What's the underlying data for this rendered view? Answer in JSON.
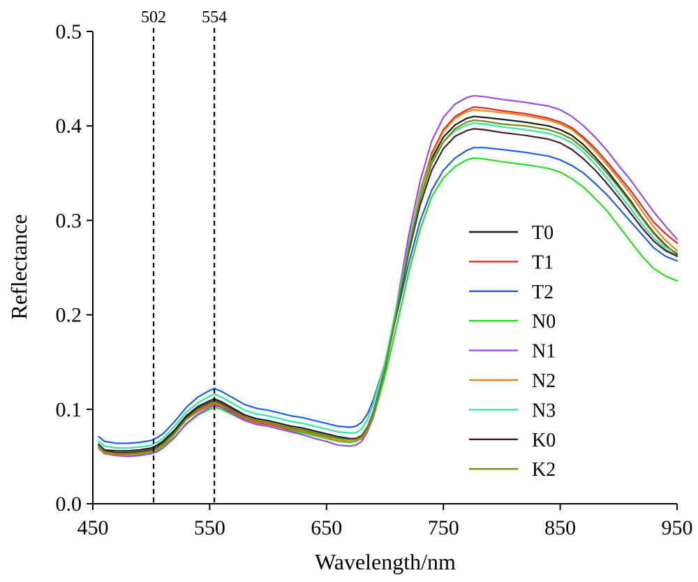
{
  "chart_data": {
    "type": "line",
    "title": "",
    "xlabel": "Wavelength/nm",
    "ylabel": "Reflectance",
    "xlim": [
      450,
      950
    ],
    "ylim": [
      0.0,
      0.5
    ],
    "xticks": [
      450,
      550,
      650,
      750,
      850,
      950
    ],
    "xtick_labels": [
      "450",
      "550",
      "650",
      "750",
      "850",
      "950"
    ],
    "yticks": [
      0.0,
      0.1,
      0.2,
      0.3,
      0.4,
      0.5
    ],
    "ytick_labels": [
      "0.0",
      "0.1",
      "0.2",
      "0.3",
      "0.4",
      "0.5"
    ],
    "grid": false,
    "legend_position": "center-right",
    "reference_lines": [
      {
        "x": 502,
        "label": "502",
        "style": "dashed"
      },
      {
        "x": 554,
        "label": "554",
        "style": "dashed"
      }
    ],
    "x": [
      455,
      460,
      470,
      480,
      490,
      500,
      505,
      510,
      520,
      530,
      540,
      550,
      554,
      560,
      570,
      580,
      590,
      600,
      610,
      620,
      630,
      640,
      650,
      660,
      670,
      675,
      680,
      685,
      690,
      700,
      710,
      720,
      730,
      740,
      750,
      760,
      770,
      776,
      785,
      800,
      820,
      840,
      850,
      860,
      870,
      880,
      890,
      900,
      910,
      920,
      930,
      940,
      950
    ],
    "series": [
      {
        "name": "T0",
        "color": "#1a1a1a",
        "values": [
          0.063,
          0.057,
          0.056,
          0.056,
          0.057,
          0.059,
          0.062,
          0.066,
          0.078,
          0.093,
          0.103,
          0.109,
          0.111,
          0.108,
          0.101,
          0.094,
          0.09,
          0.088,
          0.085,
          0.082,
          0.08,
          0.077,
          0.074,
          0.071,
          0.069,
          0.069,
          0.072,
          0.081,
          0.097,
          0.144,
          0.205,
          0.27,
          0.325,
          0.365,
          0.388,
          0.401,
          0.408,
          0.41,
          0.409,
          0.407,
          0.404,
          0.4,
          0.396,
          0.39,
          0.38,
          0.367,
          0.353,
          0.337,
          0.321,
          0.303,
          0.287,
          0.274,
          0.264
        ]
      },
      {
        "name": "T1",
        "color": "#e8201e",
        "values": [
          0.062,
          0.056,
          0.054,
          0.054,
          0.055,
          0.057,
          0.06,
          0.064,
          0.075,
          0.089,
          0.098,
          0.104,
          0.106,
          0.103,
          0.097,
          0.09,
          0.086,
          0.084,
          0.081,
          0.078,
          0.076,
          0.073,
          0.07,
          0.067,
          0.066,
          0.066,
          0.069,
          0.078,
          0.095,
          0.143,
          0.206,
          0.273,
          0.33,
          0.371,
          0.396,
          0.41,
          0.417,
          0.42,
          0.419,
          0.416,
          0.413,
          0.408,
          0.404,
          0.398,
          0.388,
          0.376,
          0.362,
          0.347,
          0.332,
          0.315,
          0.298,
          0.286,
          0.276
        ]
      },
      {
        "name": "T2",
        "color": "#1d5fe0",
        "values": [
          0.071,
          0.066,
          0.064,
          0.064,
          0.065,
          0.067,
          0.07,
          0.074,
          0.087,
          0.102,
          0.113,
          0.12,
          0.122,
          0.119,
          0.112,
          0.105,
          0.101,
          0.099,
          0.096,
          0.093,
          0.091,
          0.088,
          0.085,
          0.082,
          0.081,
          0.082,
          0.086,
          0.095,
          0.11,
          0.149,
          0.2,
          0.253,
          0.299,
          0.332,
          0.353,
          0.366,
          0.374,
          0.377,
          0.377,
          0.375,
          0.372,
          0.368,
          0.364,
          0.358,
          0.35,
          0.339,
          0.327,
          0.313,
          0.299,
          0.285,
          0.271,
          0.262,
          0.257
        ]
      },
      {
        "name": "N0",
        "color": "#22e022",
        "values": [
          0.059,
          0.053,
          0.051,
          0.051,
          0.052,
          0.054,
          0.057,
          0.061,
          0.071,
          0.084,
          0.094,
          0.1,
          0.102,
          0.1,
          0.094,
          0.088,
          0.084,
          0.082,
          0.079,
          0.077,
          0.075,
          0.072,
          0.069,
          0.066,
          0.065,
          0.066,
          0.069,
          0.077,
          0.091,
          0.135,
          0.188,
          0.243,
          0.29,
          0.325,
          0.345,
          0.357,
          0.364,
          0.366,
          0.365,
          0.362,
          0.359,
          0.355,
          0.351,
          0.344,
          0.335,
          0.323,
          0.31,
          0.294,
          0.278,
          0.262,
          0.249,
          0.241,
          0.236
        ]
      },
      {
        "name": "N1",
        "color": "#9a4be8",
        "values": [
          0.059,
          0.053,
          0.051,
          0.05,
          0.051,
          0.053,
          0.055,
          0.059,
          0.07,
          0.085,
          0.095,
          0.102,
          0.104,
          0.102,
          0.095,
          0.088,
          0.084,
          0.082,
          0.079,
          0.076,
          0.073,
          0.069,
          0.066,
          0.062,
          0.061,
          0.062,
          0.066,
          0.076,
          0.093,
          0.143,
          0.21,
          0.282,
          0.341,
          0.384,
          0.409,
          0.423,
          0.43,
          0.432,
          0.431,
          0.428,
          0.425,
          0.421,
          0.417,
          0.41,
          0.4,
          0.388,
          0.374,
          0.358,
          0.343,
          0.326,
          0.309,
          0.294,
          0.28
        ]
      },
      {
        "name": "N2",
        "color": "#d98c1a",
        "values": [
          0.06,
          0.054,
          0.052,
          0.052,
          0.053,
          0.055,
          0.058,
          0.062,
          0.074,
          0.089,
          0.099,
          0.105,
          0.107,
          0.104,
          0.098,
          0.091,
          0.087,
          0.085,
          0.082,
          0.079,
          0.077,
          0.074,
          0.07,
          0.067,
          0.066,
          0.066,
          0.069,
          0.078,
          0.095,
          0.144,
          0.207,
          0.273,
          0.329,
          0.369,
          0.394,
          0.408,
          0.415,
          0.417,
          0.416,
          0.414,
          0.411,
          0.406,
          0.402,
          0.396,
          0.386,
          0.373,
          0.359,
          0.344,
          0.328,
          0.31,
          0.293,
          0.279,
          0.268
        ]
      },
      {
        "name": "N3",
        "color": "#2ee8a8",
        "values": [
          0.066,
          0.061,
          0.059,
          0.059,
          0.06,
          0.062,
          0.065,
          0.069,
          0.082,
          0.097,
          0.107,
          0.114,
          0.116,
          0.113,
          0.106,
          0.099,
          0.095,
          0.093,
          0.09,
          0.087,
          0.085,
          0.082,
          0.079,
          0.076,
          0.075,
          0.075,
          0.079,
          0.089,
          0.106,
          0.15,
          0.209,
          0.272,
          0.326,
          0.362,
          0.383,
          0.395,
          0.401,
          0.403,
          0.402,
          0.399,
          0.396,
          0.392,
          0.388,
          0.382,
          0.372,
          0.359,
          0.345,
          0.329,
          0.313,
          0.296,
          0.281,
          0.27,
          0.262
        ]
      },
      {
        "name": "K0",
        "color": "#4a1a2a",
        "values": [
          0.062,
          0.056,
          0.054,
          0.054,
          0.055,
          0.057,
          0.06,
          0.064,
          0.076,
          0.091,
          0.101,
          0.107,
          0.109,
          0.106,
          0.099,
          0.092,
          0.088,
          0.086,
          0.083,
          0.08,
          0.078,
          0.075,
          0.072,
          0.069,
          0.068,
          0.068,
          0.071,
          0.08,
          0.096,
          0.142,
          0.202,
          0.264,
          0.316,
          0.353,
          0.376,
          0.389,
          0.395,
          0.397,
          0.396,
          0.393,
          0.39,
          0.386,
          0.382,
          0.375,
          0.365,
          0.353,
          0.339,
          0.324,
          0.308,
          0.292,
          0.278,
          0.268,
          0.262
        ]
      },
      {
        "name": "K2",
        "color": "#6e8c12",
        "values": [
          0.061,
          0.055,
          0.053,
          0.053,
          0.054,
          0.056,
          0.059,
          0.063,
          0.075,
          0.09,
          0.1,
          0.106,
          0.108,
          0.105,
          0.098,
          0.092,
          0.088,
          0.086,
          0.083,
          0.08,
          0.078,
          0.075,
          0.072,
          0.069,
          0.068,
          0.068,
          0.071,
          0.08,
          0.096,
          0.143,
          0.204,
          0.268,
          0.322,
          0.36,
          0.383,
          0.397,
          0.404,
          0.406,
          0.405,
          0.402,
          0.4,
          0.396,
          0.392,
          0.386,
          0.376,
          0.364,
          0.35,
          0.335,
          0.319,
          0.302,
          0.286,
          0.273,
          0.265
        ]
      }
    ]
  }
}
